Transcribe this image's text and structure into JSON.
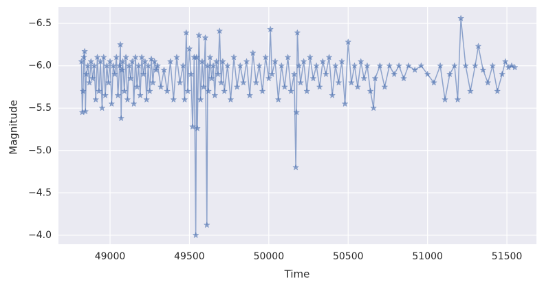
{
  "chart_data": {
    "type": "line",
    "xlabel": "Time",
    "ylabel": "Magnitude",
    "xlim": [
      48675,
      51686
    ],
    "ylim": [
      -3.894,
      -6.695
    ],
    "xticks": [
      49000,
      49500,
      50000,
      50500,
      51000,
      51500
    ],
    "yticks": [
      {
        "value": -6.5,
        "label": "−6.5"
      },
      {
        "value": -6.0,
        "label": "−6.0"
      },
      {
        "value": -5.5,
        "label": "−5.5"
      },
      {
        "value": -5.0,
        "label": "−5.0"
      },
      {
        "value": -4.5,
        "label": "−4.5"
      },
      {
        "value": -4.0,
        "label": "−4.0"
      }
    ],
    "grid": true,
    "marker": "star",
    "series": [
      {
        "color": "#4c72b0",
        "x": [
          48820,
          48825,
          48830,
          48835,
          48840,
          48845,
          48850,
          48860,
          48870,
          48880,
          48890,
          48900,
          48910,
          48920,
          48930,
          48940,
          48950,
          48960,
          48970,
          48980,
          48990,
          49000,
          49010,
          49020,
          49030,
          49040,
          49050,
          49060,
          49065,
          49070,
          49075,
          49080,
          49090,
          49100,
          49110,
          49120,
          49130,
          49140,
          49150,
          49160,
          49170,
          49180,
          49190,
          49200,
          49210,
          49220,
          49230,
          49240,
          49250,
          49260,
          49270,
          49280,
          49290,
          49300,
          49320,
          49340,
          49360,
          49380,
          49400,
          49420,
          49440,
          49460,
          49470,
          49480,
          49490,
          49500,
          49510,
          49520,
          49530,
          49540,
          49545,
          49550,
          49560,
          49570,
          49580,
          49590,
          49600,
          49610,
          49615,
          49620,
          49630,
          49640,
          49650,
          49660,
          49670,
          49680,
          49690,
          49700,
          49710,
          49720,
          49740,
          49760,
          49780,
          49800,
          49820,
          49840,
          49860,
          49880,
          49900,
          49920,
          49940,
          49960,
          49980,
          50000,
          50010,
          50020,
          50040,
          50060,
          50080,
          50100,
          50120,
          50140,
          50160,
          50170,
          50175,
          50180,
          50190,
          50200,
          50220,
          50240,
          50260,
          50280,
          50300,
          50320,
          50340,
          50360,
          50380,
          50400,
          50420,
          50440,
          50460,
          50480,
          50500,
          50520,
          50540,
          50560,
          50580,
          50600,
          50620,
          50640,
          50660,
          50670,
          50700,
          50730,
          50760,
          50790,
          50820,
          50850,
          50880,
          50920,
          50960,
          51000,
          51040,
          51080,
          51110,
          51140,
          51170,
          51190,
          51210,
          51240,
          51270,
          51300,
          51320,
          51350,
          51380,
          51410,
          51440,
          51470,
          51490,
          51510,
          51530,
          51550
        ],
        "values": [
          -6.05,
          -5.45,
          -5.7,
          -6.1,
          -6.17,
          -5.46,
          -5.9,
          -6.0,
          -5.8,
          -6.05,
          -5.85,
          -6.0,
          -5.6,
          -6.1,
          -5.7,
          -6.05,
          -5.5,
          -6.1,
          -5.65,
          -6.0,
          -5.8,
          -6.05,
          -5.55,
          -6.0,
          -5.9,
          -6.1,
          -5.65,
          -6.0,
          -6.25,
          -5.38,
          -5.95,
          -6.05,
          -5.7,
          -6.1,
          -5.6,
          -6.0,
          -5.85,
          -6.05,
          -5.55,
          -6.1,
          -5.75,
          -6.0,
          -5.65,
          -6.1,
          -5.9,
          -6.05,
          -5.6,
          -6.0,
          -5.7,
          -6.08,
          -5.8,
          -6.05,
          -5.95,
          -6.0,
          -5.75,
          -5.95,
          -5.7,
          -6.05,
          -5.6,
          -6.1,
          -5.8,
          -6.0,
          -5.6,
          -6.39,
          -5.7,
          -6.2,
          -5.9,
          -5.28,
          -6.1,
          -4.0,
          -6.1,
          -5.26,
          -6.36,
          -5.6,
          -6.05,
          -5.75,
          -6.33,
          -4.12,
          -6.0,
          -5.7,
          -6.1,
          -5.85,
          -6.0,
          -5.65,
          -6.05,
          -5.9,
          -6.41,
          -5.8,
          -6.05,
          -5.7,
          -6.0,
          -5.6,
          -6.1,
          -5.75,
          -6.0,
          -5.8,
          -6.05,
          -5.65,
          -6.15,
          -5.8,
          -6.0,
          -5.7,
          -6.1,
          -5.85,
          -6.43,
          -5.9,
          -6.05,
          -5.6,
          -6.0,
          -5.75,
          -6.1,
          -5.7,
          -5.9,
          -4.8,
          -5.45,
          -6.39,
          -6.0,
          -5.8,
          -6.05,
          -5.7,
          -6.1,
          -5.85,
          -6.0,
          -5.75,
          -6.05,
          -5.9,
          -6.1,
          -5.65,
          -6.0,
          -5.8,
          -6.05,
          -5.55,
          -6.28,
          -5.8,
          -6.0,
          -5.75,
          -6.05,
          -5.85,
          -6.0,
          -5.7,
          -5.5,
          -5.85,
          -6.0,
          -5.75,
          -6.0,
          -5.9,
          -6.0,
          -5.85,
          -6.0,
          -5.95,
          -6.0,
          -5.9,
          -5.8,
          -6.0,
          -5.6,
          -5.9,
          -6.0,
          -5.6,
          -6.56,
          -6.0,
          -5.7,
          -6.0,
          -6.23,
          -5.95,
          -5.8,
          -6.0,
          -5.7,
          -5.9,
          -6.05,
          -5.98,
          -6.0,
          -5.98
        ]
      }
    ]
  }
}
